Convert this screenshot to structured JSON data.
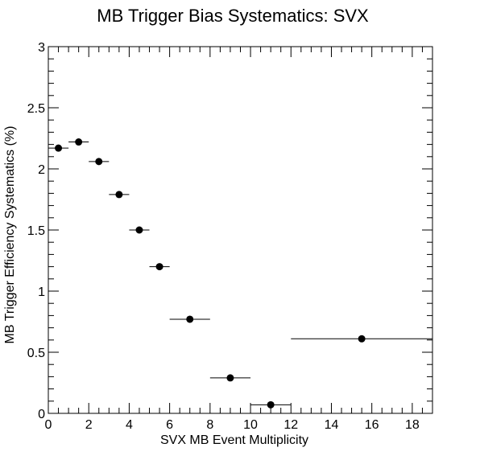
{
  "chart_data": {
    "type": "scatter",
    "title": "MB Trigger Bias Systematics: SVX",
    "xlabel": "SVX MB Event Multiplicity",
    "ylabel": "MB Trigger Efficiency Systematics (%)",
    "xlim": [
      0,
      19
    ],
    "ylim": [
      0,
      3
    ],
    "xticks": [
      0,
      2,
      4,
      6,
      8,
      10,
      12,
      14,
      16,
      18
    ],
    "yticks": [
      0,
      0.5,
      1,
      1.5,
      2,
      2.5,
      3
    ],
    "xtick_labels": [
      "0",
      "2",
      "4",
      "6",
      "8",
      "10",
      "12",
      "14",
      "16",
      "18"
    ],
    "ytick_labels": [
      "0",
      "0.5",
      "1",
      "1.5",
      "2",
      "2.5",
      "3"
    ],
    "grid": false,
    "legend": "none",
    "series": [
      {
        "points": [
          {
            "x": 0.5,
            "y": 2.17,
            "x_low": 0,
            "x_high": 1
          },
          {
            "x": 1.5,
            "y": 2.22,
            "x_low": 1,
            "x_high": 2
          },
          {
            "x": 2.5,
            "y": 2.06,
            "x_low": 2,
            "x_high": 3
          },
          {
            "x": 3.5,
            "y": 1.79,
            "x_low": 3,
            "x_high": 4
          },
          {
            "x": 4.5,
            "y": 1.5,
            "x_low": 4,
            "x_high": 5
          },
          {
            "x": 5.5,
            "y": 1.2,
            "x_low": 5,
            "x_high": 6
          },
          {
            "x": 7.0,
            "y": 0.77,
            "x_low": 6,
            "x_high": 8
          },
          {
            "x": 9.0,
            "y": 0.29,
            "x_low": 8,
            "x_high": 10
          },
          {
            "x": 11.0,
            "y": 0.07,
            "x_low": 10,
            "x_high": 12
          },
          {
            "x": 15.5,
            "y": 0.61,
            "x_low": 12,
            "x_high": 19
          }
        ]
      }
    ],
    "colors": {
      "marker": "#000000",
      "axis": "#000000",
      "background": "#ffffff"
    }
  }
}
